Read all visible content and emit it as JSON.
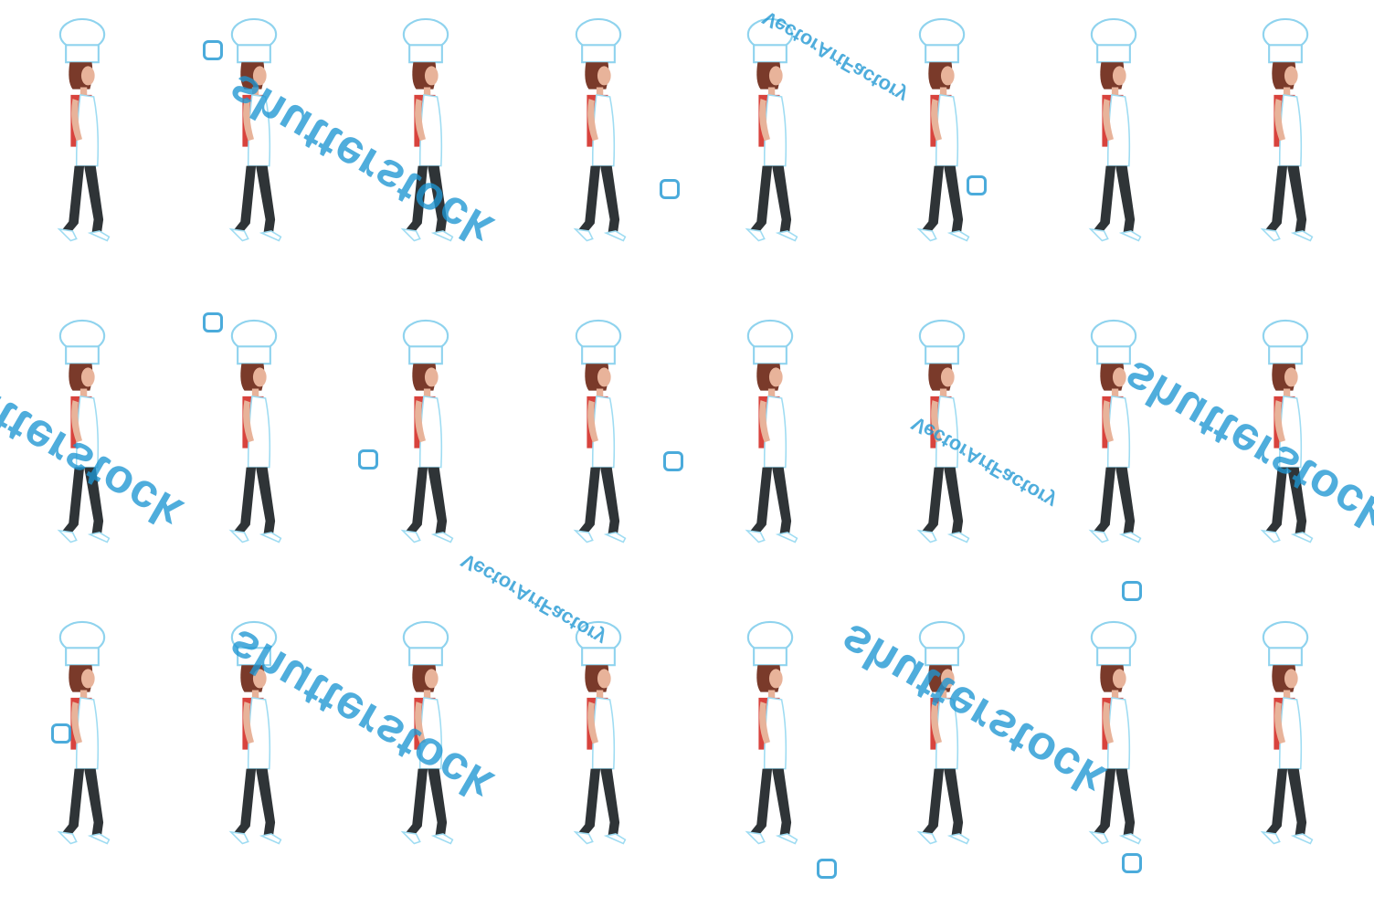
{
  "sprite_sheet": {
    "rows": 3,
    "columns": 8,
    "character": "chef-woman-walk-cycle",
    "colors": {
      "hat": "#ffffff",
      "hat_outline": "#8fd3ee",
      "hair": "#7a3a2a",
      "skin": "#e8b39a",
      "shirt": "#d8433d",
      "apron": "#ffffff",
      "leggings": "#2f3437",
      "shoes": "#ffffff",
      "outline": "#9fdcf2"
    }
  },
  "watermarks": {
    "brand": "shutterstock",
    "author": "VectorArtFactory",
    "color": "#1e96d2",
    "icon": "shutterstock-logo-icon"
  }
}
